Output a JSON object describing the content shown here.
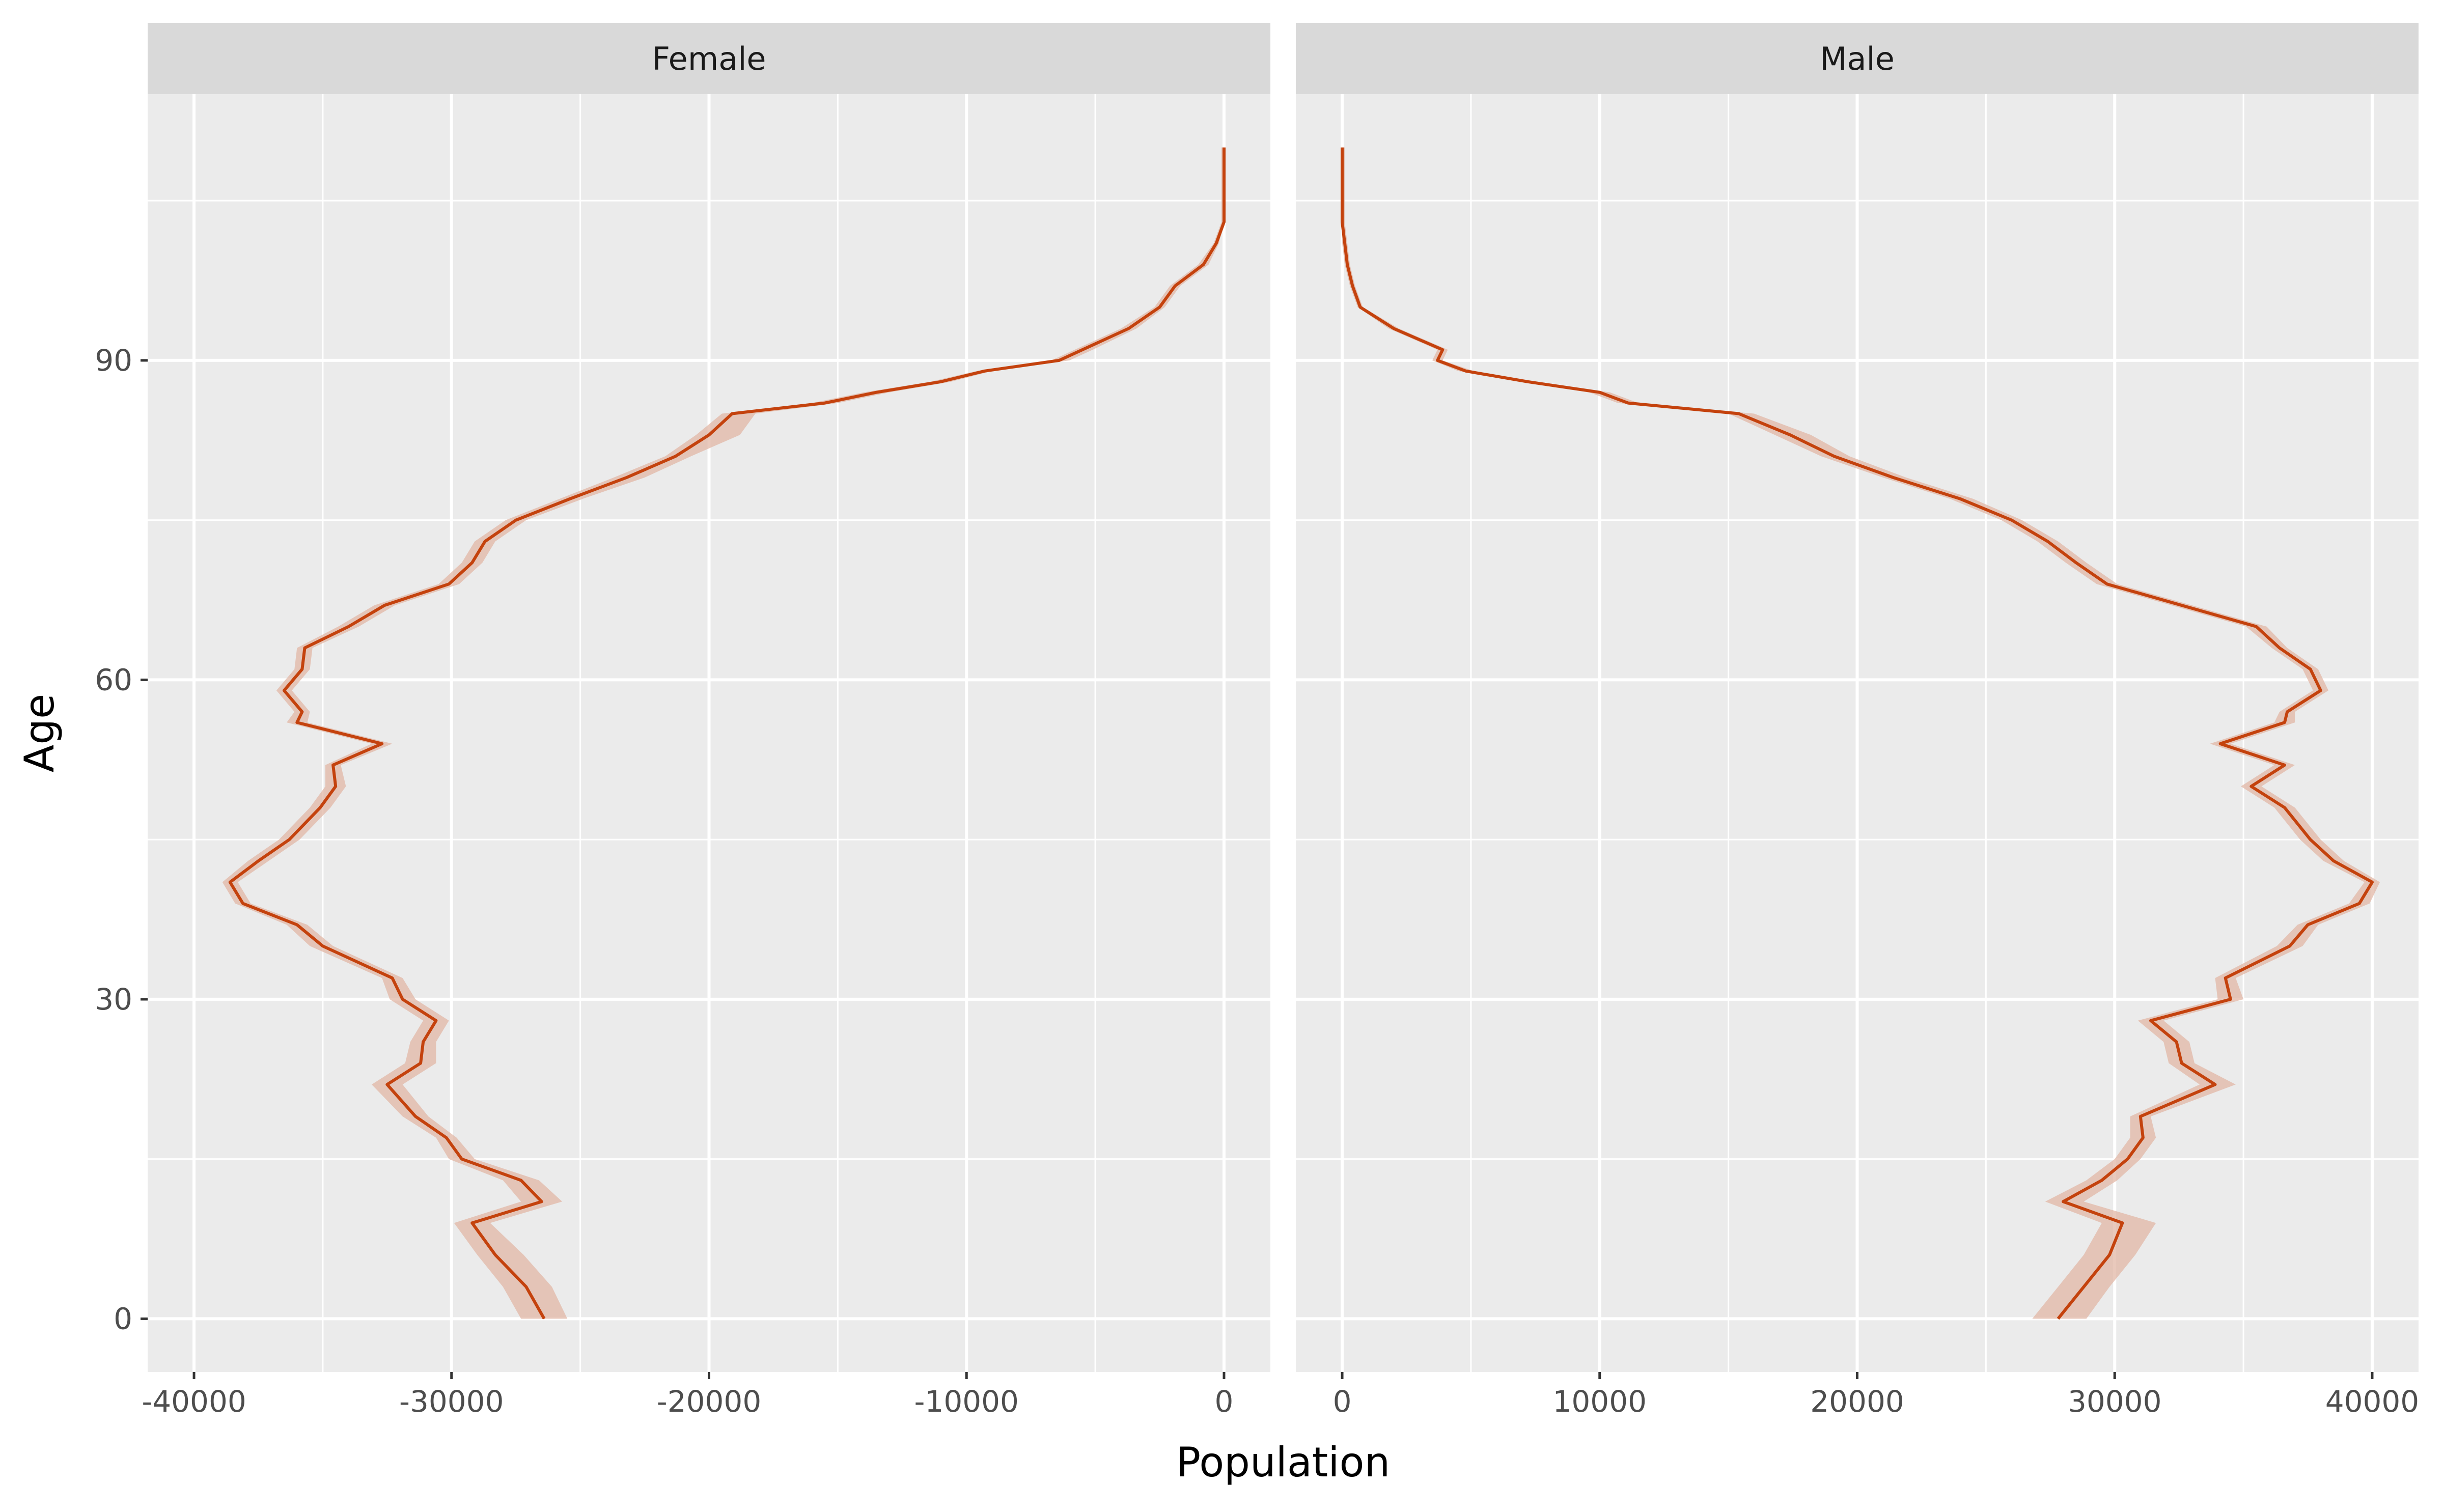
{
  "chart_data": {
    "type": "line",
    "xlabel": "Population",
    "ylabel": "Age",
    "legend": "none",
    "grid": true,
    "y_ticks": [
      0,
      30,
      60,
      90
    ],
    "ylim": [
      -5,
      115
    ],
    "colors": {
      "line": "#C4420D",
      "ribbon": "#E2B7A5",
      "panel_bg": "#EBEBEB",
      "strip_bg": "#D9D9D9",
      "grid": "#FFFFFF"
    },
    "panels": [
      {
        "label": "Female",
        "xlim": [
          -40000,
          0
        ],
        "x_ticks": [
          -40000,
          -30000,
          -20000,
          -10000,
          0
        ],
        "x_tick_labels": [
          "-40000",
          "-30000",
          "-20000",
          "-10000",
          "0"
        ],
        "series": [
          {
            "age": [
              0,
              3,
              6,
              9,
              11,
              13,
              15,
              17,
              19,
              22,
              24,
              26,
              28,
              30,
              32,
              35,
              37,
              39,
              41,
              43,
              45,
              48,
              50,
              52,
              54,
              56,
              57,
              59,
              61,
              63,
              65,
              67,
              69,
              71,
              73,
              75,
              77,
              79,
              81,
              83,
              85,
              86,
              87,
              88,
              89,
              90,
              91,
              93,
              95,
              97,
              99,
              101,
              103,
              105,
              107,
              110
            ],
            "value": [
              -26400,
              -27100,
              -28300,
              -29200,
              -26500,
              -27300,
              -29600,
              -30200,
              -31400,
              -32500,
              -31200,
              -31100,
              -30600,
              -31900,
              -32300,
              -35000,
              -36000,
              -38100,
              -38600,
              -37500,
              -36300,
              -35100,
              -34500,
              -34600,
              -32700,
              -36000,
              -35800,
              -36500,
              -35800,
              -35700,
              -34000,
              -32600,
              -30100,
              -29200,
              -28700,
              -27500,
              -25400,
              -23200,
              -21300,
              -20000,
              -19100,
              -15500,
              -13500,
              -11000,
              -9300,
              -6400,
              -5500,
              -3700,
              -2500,
              -1900,
              -800,
              -300,
              0,
              0,
              0,
              0
            ],
            "lower": [
              -27300,
              -28000,
              -29000,
              -29900,
              -27300,
              -28000,
              -30100,
              -30600,
              -31900,
              -33100,
              -31800,
              -31600,
              -31100,
              -32400,
              -32700,
              -35500,
              -36400,
              -38400,
              -38900,
              -37900,
              -36700,
              -35500,
              -34900,
              -34900,
              -33100,
              -36400,
              -36100,
              -36800,
              -36100,
              -36000,
              -34400,
              -33000,
              -30500,
              -29600,
              -29100,
              -27900,
              -25800,
              -23700,
              -21700,
              -20500,
              -19500,
              -16000,
              -14000,
              -11400,
              -9600,
              -6700,
              -5800,
              -4000,
              -2700,
              -2100,
              -1000,
              -400,
              -100,
              -100,
              -100,
              -100
            ],
            "upper": [
              -25500,
              -26100,
              -27200,
              -28500,
              -25700,
              -26600,
              -29100,
              -29800,
              -30900,
              -31900,
              -30600,
              -30600,
              -30100,
              -31400,
              -31900,
              -34600,
              -35600,
              -37800,
              -38300,
              -37100,
              -35900,
              -34700,
              -34100,
              -34300,
              -32300,
              -35600,
              -35500,
              -36200,
              -35500,
              -35400,
              -33600,
              -32200,
              -29700,
              -28800,
              -28300,
              -27100,
              -24900,
              -22500,
              -20700,
              -18800,
              -18200,
              -15000,
              -13000,
              -10600,
              -9000,
              -6000,
              -5100,
              -3400,
              -2300,
              -1700,
              -600,
              -200,
              0,
              0,
              0,
              0
            ]
          }
        ]
      },
      {
        "label": "Male",
        "xlim": [
          0,
          40000
        ],
        "x_ticks": [
          0,
          10000,
          20000,
          30000,
          40000
        ],
        "x_tick_labels": [
          "0",
          "10000",
          "20000",
          "30000",
          "40000"
        ],
        "series": [
          {
            "age": [
              0,
              3,
              6,
              9,
              11,
              13,
              15,
              17,
              19,
              22,
              24,
              26,
              28,
              30,
              32,
              35,
              37,
              39,
              41,
              43,
              45,
              48,
              50,
              52,
              54,
              56,
              57,
              59,
              61,
              63,
              65,
              67,
              69,
              71,
              73,
              75,
              77,
              79,
              81,
              83,
              85,
              86,
              87,
              88,
              89,
              90,
              91,
              93,
              95,
              97,
              99,
              101,
              103,
              105,
              107,
              110
            ],
            "value": [
              27800,
              28800,
              29800,
              30300,
              28000,
              29500,
              30500,
              31100,
              31000,
              33900,
              32600,
              32400,
              31400,
              34500,
              34300,
              36800,
              37500,
              39500,
              40000,
              38500,
              37600,
              36600,
              35300,
              36600,
              34100,
              36600,
              36700,
              38000,
              37600,
              36400,
              35500,
              32600,
              29700,
              28500,
              27400,
              26000,
              24000,
              21400,
              19100,
              17400,
              15400,
              11100,
              10000,
              7200,
              4800,
              3700,
              3900,
              2000,
              700,
              400,
              200,
              100,
              0,
              0,
              0,
              0
            ],
            "lower": [
              26800,
              27800,
              28800,
              29500,
              27300,
              28900,
              30000,
              30600,
              30600,
              33300,
              32100,
              31900,
              30900,
              34000,
              33900,
              36300,
              37100,
              39100,
              39700,
              38100,
              37200,
              36200,
              34900,
              36200,
              33700,
              36200,
              36400,
              37700,
              37300,
              36100,
              35100,
              32200,
              29300,
              28100,
              27000,
              25600,
              23600,
              21000,
              18600,
              16800,
              15000,
              10700,
              9600,
              6900,
              4500,
              3500,
              3700,
              1800,
              600,
              300,
              100,
              0,
              0,
              0,
              0,
              0
            ],
            "upper": [
              28900,
              29800,
              30800,
              31600,
              28800,
              30100,
              31000,
              31600,
              31400,
              34700,
              33100,
              32900,
              31900,
              35000,
              34700,
              37300,
              37900,
              39900,
              40300,
              38900,
              38000,
              37000,
              35700,
              37000,
              34500,
              37000,
              37000,
              38300,
              37900,
              36700,
              35900,
              33000,
              30100,
              28900,
              27800,
              26400,
              24500,
              21900,
              19700,
              18200,
              16000,
              11500,
              10400,
              7600,
              5100,
              3900,
              4100,
              2200,
              800,
              500,
              300,
              200,
              100,
              100,
              100,
              100
            ]
          }
        ]
      }
    ]
  }
}
